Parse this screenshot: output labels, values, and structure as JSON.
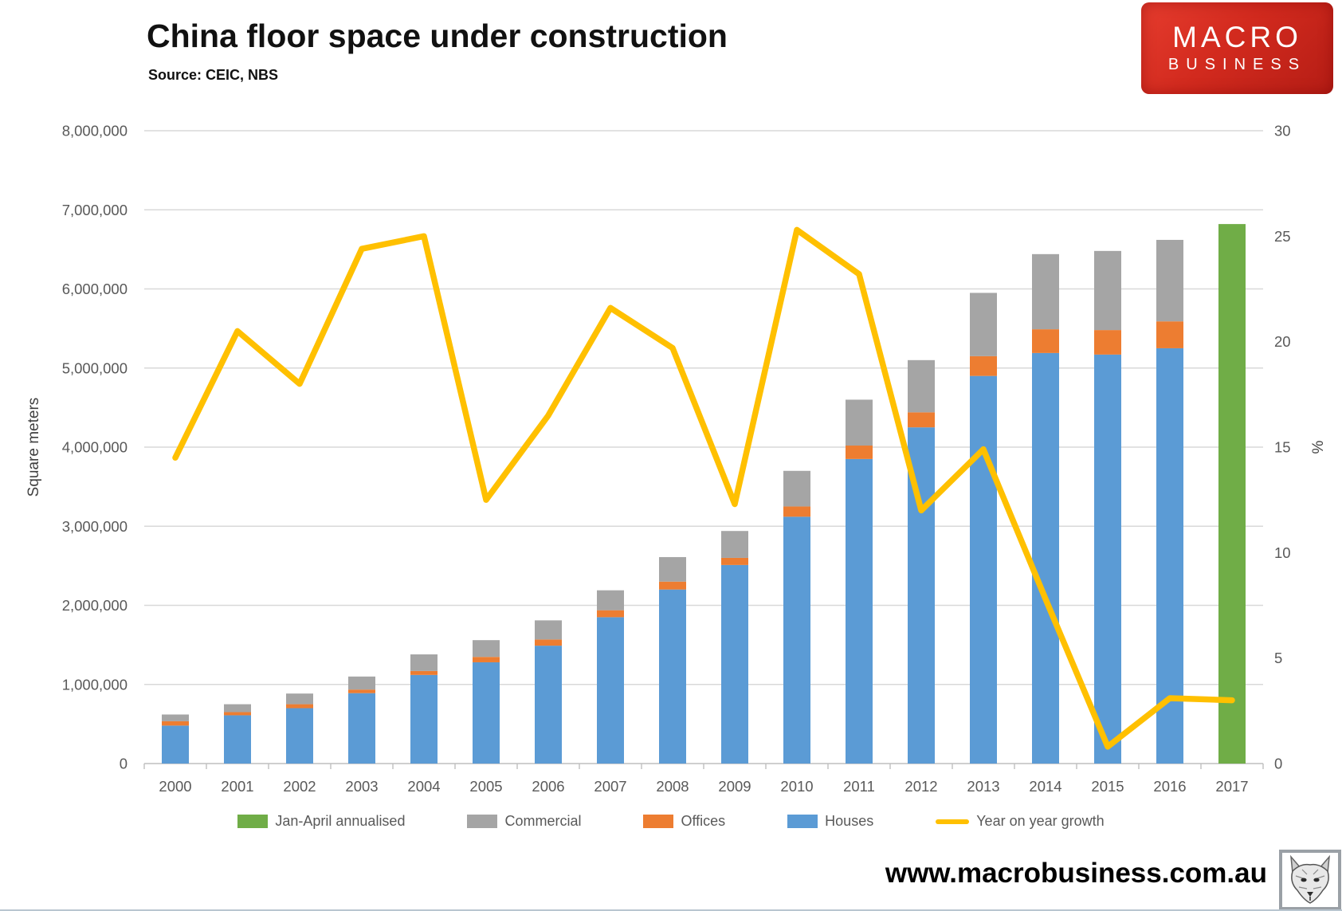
{
  "header": {
    "title": "China floor space under construction",
    "source": "Source: CEIC, NBS"
  },
  "logo": {
    "line1": "MACRO",
    "line2": "BUSINESS",
    "bg_color": "#d22a1e",
    "text_color": "#ffffff"
  },
  "footer": {
    "url": "www.macrobusiness.com.au"
  },
  "chart_data": {
    "type": "composite-stacked-bar-line",
    "title": "China floor space under construction",
    "categories": [
      "2000",
      "2001",
      "2002",
      "2003",
      "2004",
      "2005",
      "2006",
      "2007",
      "2008",
      "2009",
      "2010",
      "2011",
      "2012",
      "2013",
      "2014",
      "2015",
      "2016",
      "2017"
    ],
    "series": [
      {
        "name": "Houses",
        "type": "bar-stacked",
        "axis": "left",
        "color": "#5B9BD5",
        "values": [
          480000,
          610000,
          700000,
          890000,
          1120000,
          1280000,
          1490000,
          1850000,
          2200000,
          2510000,
          3120000,
          3850000,
          4250000,
          4900000,
          5190000,
          5170000,
          5250000,
          null
        ]
      },
      {
        "name": "Offices",
        "type": "bar-stacked",
        "axis": "left",
        "color": "#ED7D31",
        "values": [
          55000,
          40000,
          50000,
          45000,
          50000,
          68000,
          78000,
          88000,
          100000,
          90000,
          130000,
          170000,
          190000,
          250000,
          300000,
          310000,
          340000,
          null
        ]
      },
      {
        "name": "Commercial",
        "type": "bar-stacked",
        "axis": "left",
        "color": "#A5A5A5",
        "values": [
          85000,
          100000,
          135000,
          165000,
          210000,
          212000,
          242000,
          252000,
          310000,
          340000,
          450000,
          580000,
          660000,
          800000,
          950000,
          1000000,
          1030000,
          null
        ]
      },
      {
        "name": "Jan-April annualised",
        "type": "bar",
        "axis": "left",
        "color": "#70AD47",
        "values": [
          null,
          null,
          null,
          null,
          null,
          null,
          null,
          null,
          null,
          null,
          null,
          null,
          null,
          null,
          null,
          null,
          null,
          6820000
        ]
      },
      {
        "name": "Year on year growth",
        "type": "line",
        "axis": "right",
        "color": "#FFC000",
        "values": [
          14.5,
          20.5,
          18.0,
          24.4,
          25.0,
          12.5,
          16.5,
          21.6,
          19.7,
          12.3,
          25.3,
          23.2,
          12.0,
          14.9,
          7.8,
          0.8,
          3.1,
          3.0
        ]
      }
    ],
    "left_axis": {
      "label": "Square meters",
      "min": 0,
      "max": 8000000,
      "tick_step": 1000000,
      "tick_labels": [
        "0",
        "1,000,000",
        "2,000,000",
        "3,000,000",
        "4,000,000",
        "5,000,000",
        "6,000,000",
        "7,000,000",
        "8,000,000"
      ]
    },
    "right_axis": {
      "label": "%",
      "min": 0,
      "max": 30,
      "tick_step": 5,
      "tick_labels": [
        "0",
        "5",
        "10",
        "15",
        "20",
        "25",
        "30"
      ]
    },
    "legend": [
      {
        "label": "Jan-April annualised",
        "color": "#70AD47",
        "shape": "rect"
      },
      {
        "label": "Commercial",
        "color": "#A5A5A5",
        "shape": "rect"
      },
      {
        "label": "Offices",
        "color": "#ED7D31",
        "shape": "rect"
      },
      {
        "label": "Houses",
        "color": "#5B9BD5",
        "shape": "rect"
      },
      {
        "label": "Year on year growth",
        "color": "#FFC000",
        "shape": "line"
      }
    ],
    "grid": {
      "show": true,
      "color": "#D9D9D9",
      "axis_line_color": "#BFBFBF"
    }
  }
}
